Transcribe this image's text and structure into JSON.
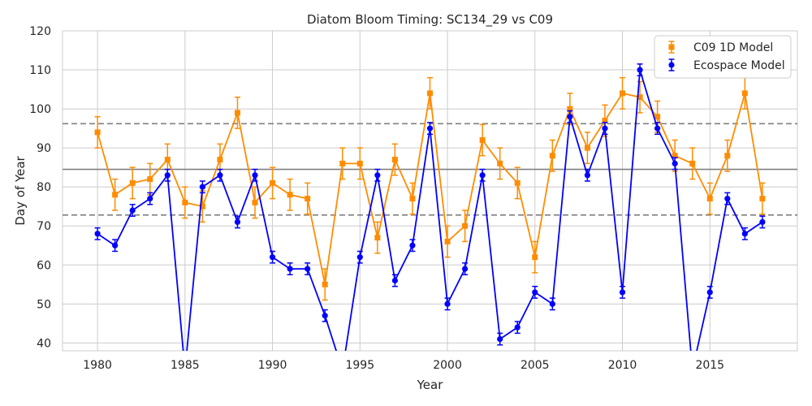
{
  "chart_data": {
    "type": "line",
    "title": "Diatom Bloom Timing: SC134_29 vs C09",
    "xlabel": "Year",
    "ylabel": "Day of Year",
    "xlim": [
      1978,
      2020
    ],
    "ylim": [
      38,
      120
    ],
    "x_ticks": [
      1980,
      1985,
      1990,
      1995,
      2000,
      2005,
      2010,
      2015
    ],
    "y_ticks": [
      40,
      50,
      60,
      70,
      80,
      90,
      100,
      110,
      120
    ],
    "grid": true,
    "legend_position": "top-right",
    "x": [
      1980,
      1981,
      1982,
      1983,
      1984,
      1985,
      1986,
      1987,
      1988,
      1989,
      1990,
      1991,
      1992,
      1993,
      1994,
      1995,
      1996,
      1997,
      1998,
      1999,
      2000,
      2001,
      2002,
      2003,
      2004,
      2005,
      2006,
      2007,
      2008,
      2009,
      2010,
      2011,
      2012,
      2013,
      2014,
      2015,
      2016,
      2017,
      2018
    ],
    "series": [
      {
        "name": "C09 1D Model",
        "color": "#ff8c00",
        "marker": "square",
        "values": [
          94,
          78,
          81,
          82,
          87,
          76,
          75,
          87,
          99,
          76,
          81,
          78,
          77,
          55,
          86,
          86,
          67,
          87,
          77,
          104,
          66,
          70,
          92,
          86,
          81,
          62,
          88,
          100,
          90,
          97,
          104,
          103,
          98,
          88,
          86,
          77,
          88,
          104,
          77
        ],
        "error": 4
      },
      {
        "name": "Ecospace Model",
        "color": "#0000ff",
        "marker": "circle",
        "values": [
          68,
          65,
          74,
          77,
          83,
          33,
          80,
          83,
          71,
          83,
          62,
          59,
          59,
          47,
          33,
          62,
          83,
          56,
          65,
          95,
          50,
          59,
          83,
          41,
          44,
          53,
          50,
          98,
          83,
          95,
          53,
          110,
          95,
          86,
          33,
          53,
          77,
          68,
          71
        ],
        "error": 1.5
      }
    ],
    "reference_lines": [
      {
        "y": 96.2,
        "style": "dashed",
        "color": "#808080"
      },
      {
        "y": 84.5,
        "style": "solid",
        "color": "#808080"
      },
      {
        "y": 72.8,
        "style": "dashed",
        "color": "#808080"
      }
    ]
  }
}
